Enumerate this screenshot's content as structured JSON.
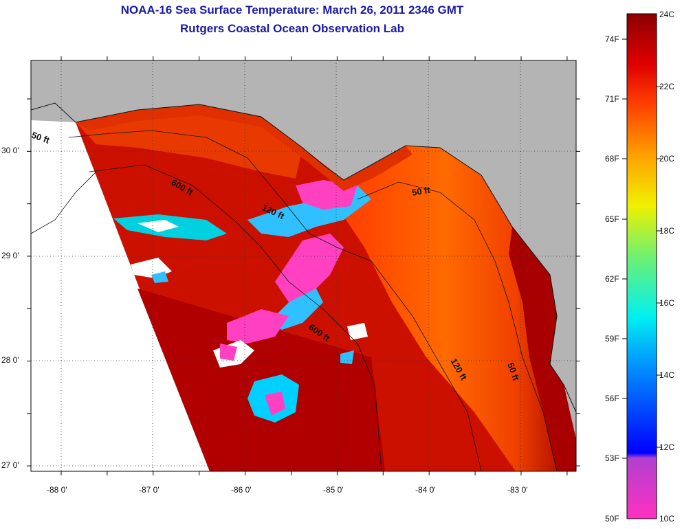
{
  "title": "NOAA-16 Sea Surface Temperature:  March 26, 2011 2346 GMT",
  "subtitle": "Rutgers Coastal Ocean Observation Lab",
  "map": {
    "lon_ticks": [
      "-88 0'",
      "-87 0'",
      "-86 0'",
      "-85 0'",
      "-84 0'",
      "-83 0'"
    ],
    "lat_ticks": [
      "30 0'",
      "29 0'",
      "28 0'",
      "27 0'"
    ],
    "lon_range": [
      -88.33,
      -82.43
    ],
    "lat_range": [
      26.98,
      30.85
    ],
    "land_color": "#b4b4b4",
    "no_data_color": "#ffffff",
    "contour_labels": [
      "50 ft",
      "600 ft",
      "120 ft",
      "50 ft",
      "600 ft",
      "120 ft",
      "50 ft"
    ]
  },
  "colorbar": {
    "fahrenheit_labels": [
      "74F",
      "71F",
      "68F",
      "65F",
      "62F",
      "59F",
      "56F",
      "53F",
      "50F"
    ],
    "celsius_labels": [
      "24C",
      "22C",
      "20C",
      "18C",
      "16C",
      "14C",
      "12C",
      "10C"
    ],
    "range_c": [
      10,
      24
    ],
    "colors": [
      "#ff30c0",
      "#7a30d8",
      "#0010f0",
      "#00a0ff",
      "#00f0f0",
      "#60f080",
      "#f0f000",
      "#ffa000",
      "#ff4000",
      "#e00000",
      "#8b0000"
    ]
  }
}
